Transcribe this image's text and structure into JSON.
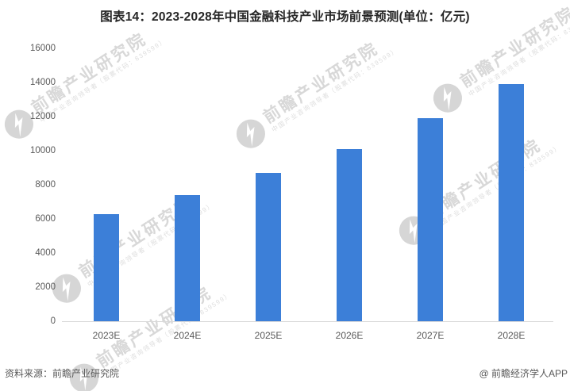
{
  "title": "图表14：2023-2028年中国金融科技产业市场前景预测(单位：亿元)",
  "footer": {
    "source": "资料来源：前瞻产业研究院",
    "credit": "@ 前瞻经济学人APP"
  },
  "watermark": {
    "text": "前瞻产业研究院",
    "subtext": "中国产业咨询领导者（股票代码：839599）"
  },
  "chart_data": {
    "type": "bar",
    "title": "图表14：2023-2028年中国金融科技产业市场前景预测(单位：亿元)",
    "unit": "亿元",
    "categories": [
      "2023E",
      "2024E",
      "2025E",
      "2026E",
      "2027E",
      "2028E"
    ],
    "values": [
      6300,
      7400,
      8700,
      10100,
      11900,
      13900
    ],
    "xlabel": "",
    "ylabel": "",
    "ylim": [
      0,
      16000
    ],
    "ytick_interval": 2000,
    "yticks": [
      0,
      2000,
      4000,
      6000,
      8000,
      10000,
      12000,
      14000,
      16000
    ],
    "grid": false,
    "legend": false,
    "bar_color": "#3C7FD8"
  },
  "colors": {
    "bar": "#3C7FD8",
    "axis_line": "#d9d9d9",
    "title_text": "#262626",
    "axis_text": "#595959",
    "watermark": "#d6d6d6"
  }
}
